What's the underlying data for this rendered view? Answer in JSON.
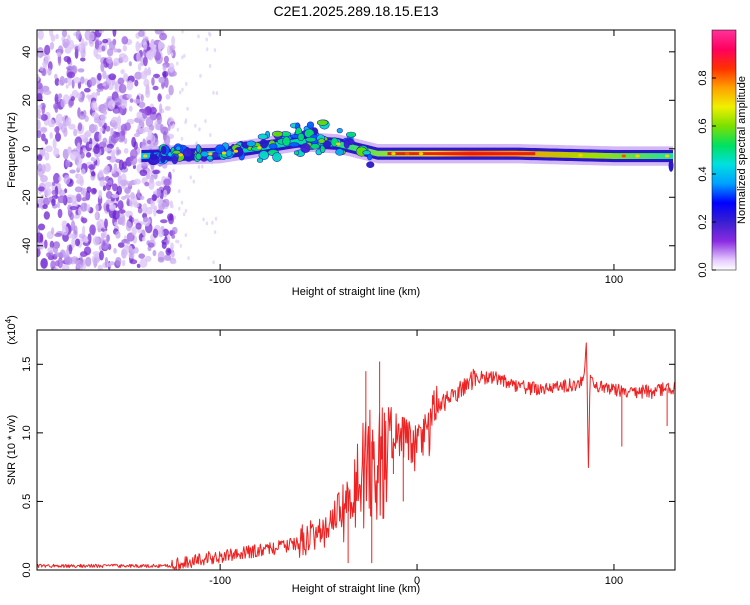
{
  "title": "C2E1.2025.289.18.15.E13",
  "colors": {
    "snr_line": "#ee2222",
    "background": "#ffffff",
    "axes": "#000000"
  },
  "chart_data": [
    {
      "type": "heatmap",
      "title": "C2E1.2025.289.18.15.E13",
      "xlabel": "Height of straight line (km)",
      "ylabel": "Frequency (Hz)",
      "xlim": [
        -193,
        131
      ],
      "ylim": [
        -50,
        49
      ],
      "xticks": [
        -100,
        100
      ],
      "xtick_labels": [
        "-100",
        "100"
      ],
      "yticks": [
        -40,
        -20,
        0,
        20,
        40
      ],
      "ytick_labels": [
        "-40",
        "-20",
        "0",
        "20",
        "40"
      ],
      "colorbar": {
        "label": "Normalized spectral amplitude",
        "range": [
          0,
          1
        ],
        "ticks": [
          0.0,
          0.2,
          0.4,
          0.6,
          0.8
        ],
        "tick_labels": [
          "0.0",
          "0.2",
          "0.4",
          "0.6",
          "0.8"
        ]
      },
      "band_center_profile": [
        {
          "x": -140,
          "freq": -3
        },
        {
          "x": -100,
          "freq": -2
        },
        {
          "x": -60,
          "freq": 3
        },
        {
          "x": -40,
          "freq": 2
        },
        {
          "x": -20,
          "freq": -2
        },
        {
          "x": 0,
          "freq": -2
        },
        {
          "x": 50,
          "freq": -2
        },
        {
          "x": 100,
          "freq": -3
        },
        {
          "x": 128,
          "freq": -3
        }
      ]
    },
    {
      "type": "line",
      "xlabel": "Height of straight line (km)",
      "ylabel": "SNR (10 * v/v)",
      "yscale_label": "(x10^4)",
      "xlim": [
        -193,
        131
      ],
      "ylim": [
        0,
        1.75
      ],
      "xticks": [
        -100,
        0,
        100
      ],
      "xtick_labels": [
        "-100",
        "0",
        "100"
      ],
      "yticks": [
        0.0,
        0.5,
        1.0,
        1.5
      ],
      "ytick_labels": [
        "0.0",
        "0.5",
        "1.0",
        "1.5"
      ],
      "series": [
        {
          "name": "SNR",
          "x": [
            -193,
            -150,
            -125,
            -110,
            -90,
            -75,
            -60,
            -45,
            -38,
            -32,
            -28,
            -24,
            -20,
            -18,
            -15,
            -10,
            -5,
            0,
            5,
            10,
            15,
            20,
            25,
            30,
            40,
            50,
            60,
            70,
            80,
            85,
            86,
            87,
            88,
            90,
            95,
            100,
            110,
            120,
            125,
            131
          ],
          "values": [
            0.03,
            0.03,
            0.03,
            0.08,
            0.12,
            0.15,
            0.2,
            0.3,
            0.5,
            0.7,
            0.85,
            0.95,
            0.9,
            0.98,
            1.05,
            0.9,
            0.95,
            0.88,
            1.0,
            1.15,
            1.25,
            1.3,
            1.35,
            1.4,
            1.4,
            1.35,
            1.32,
            1.33,
            1.35,
            1.4,
            1.72,
            0.7,
            1.45,
            1.33,
            1.33,
            1.32,
            1.3,
            1.3,
            1.32,
            1.33
          ],
          "spikes": [
            {
              "x": -26,
              "value": 1.45
            },
            {
              "x": -19,
              "value": 1.52
            },
            {
              "x": -35,
              "value": 0.05
            },
            {
              "x": -23,
              "value": 0.05
            },
            {
              "x": -12,
              "value": 0.7
            },
            {
              "x": -7,
              "value": 0.5
            },
            {
              "x": 86,
              "value": 1.72
            },
            {
              "x": 87,
              "value": 0.7
            },
            {
              "x": 104,
              "value": 0.9
            },
            {
              "x": 127,
              "value": 1.05
            }
          ]
        }
      ]
    }
  ]
}
